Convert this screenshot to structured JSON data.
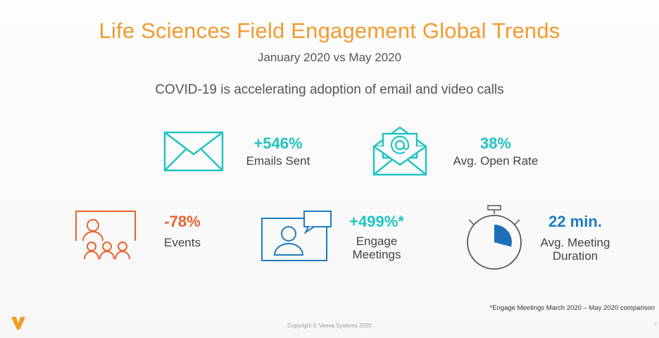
{
  "header": {
    "title": "Life Sciences Field Engagement Global Trends",
    "subtitle": "January 2020 vs May 2020",
    "tagline": "COVID-19 is accelerating adoption of email and video calls"
  },
  "stats": {
    "emails": {
      "value": "+546%",
      "label": "Emails Sent",
      "icon": "envelope-icon"
    },
    "open_rate": {
      "value": "38%",
      "label": "Avg. Open Rate",
      "icon": "open-envelope-at-icon"
    },
    "events": {
      "value": "-78%",
      "label": "Events",
      "icon": "audience-presentation-icon"
    },
    "meetings": {
      "value": "+499%*",
      "label_line1": "Engage",
      "label_line2": "Meetings",
      "icon": "video-call-icon"
    },
    "duration": {
      "value": "22 min.",
      "label_line1": "Avg. Meeting",
      "label_line2": "Duration",
      "icon": "stopwatch-icon"
    }
  },
  "footnote": "*Engage Meetings March 2020 – May 2020 comparison",
  "copyright": "Copyright © Veeva Systems 2020",
  "page_number": "7",
  "colors": {
    "title_orange": "#f39a2e",
    "teal": "#21c4c2",
    "orange": "#e8632c",
    "blue": "#1e7cc2",
    "logo": "#f29b1e"
  }
}
